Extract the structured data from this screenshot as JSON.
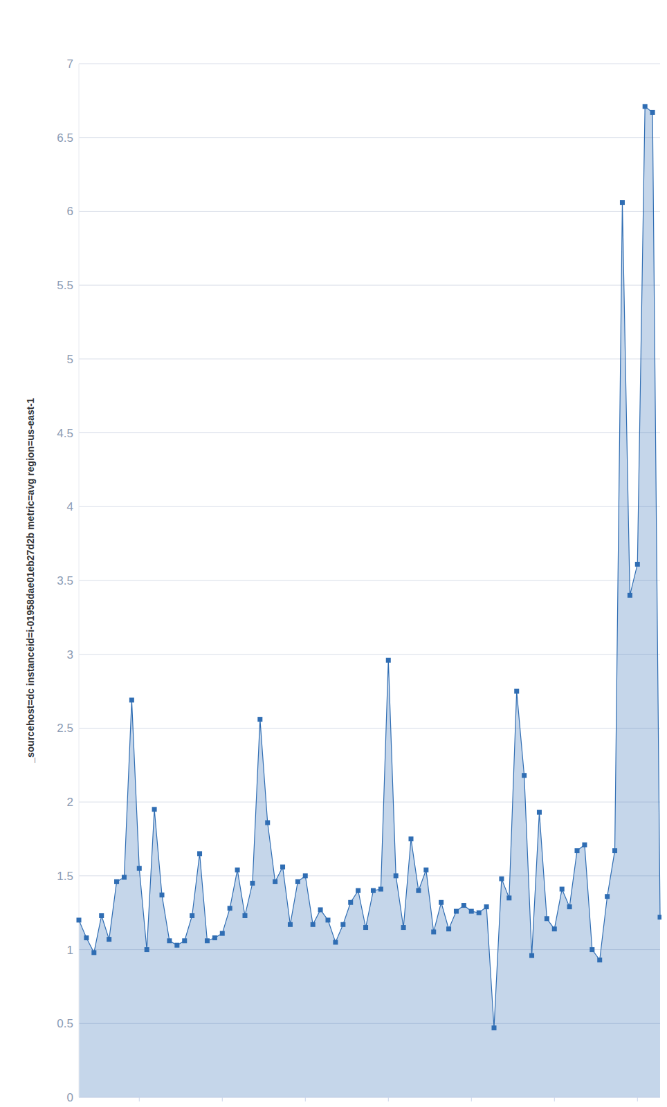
{
  "chart_data": {
    "type": "area",
    "y_label": "_sourcehost=dc instanceid=i-01958dae01eb27d2b metric=avg region=us-east-1",
    "categories": [
      null,
      null,
      null,
      null,
      null,
      null,
      null,
      null,
      null,
      null,
      null,
      null,
      null,
      null,
      null,
      null,
      null,
      null,
      null,
      null,
      null,
      null,
      null,
      null,
      null,
      null,
      null,
      null,
      null,
      null,
      null,
      null,
      null,
      null,
      null,
      null,
      null,
      null,
      null,
      null,
      null,
      null,
      null,
      null,
      null,
      null,
      null,
      null,
      null,
      null,
      null,
      null,
      null,
      null,
      null,
      null,
      null,
      null,
      null,
      null,
      null,
      null,
      null,
      null,
      null,
      null,
      null,
      null,
      null,
      null,
      null,
      null,
      null,
      null,
      null,
      null,
      null,
      null
    ],
    "values": [
      1.2,
      1.08,
      0.98,
      1.23,
      1.07,
      1.46,
      1.49,
      2.69,
      1.55,
      1.0,
      1.95,
      1.37,
      1.06,
      1.03,
      1.06,
      1.23,
      1.65,
      1.06,
      1.08,
      1.11,
      1.28,
      1.54,
      1.23,
      1.45,
      2.56,
      1.86,
      1.46,
      1.56,
      1.17,
      1.46,
      1.5,
      1.17,
      1.27,
      1.2,
      1.05,
      1.17,
      1.32,
      1.4,
      1.15,
      1.4,
      1.41,
      2.96,
      1.5,
      1.15,
      1.75,
      1.4,
      1.54,
      1.12,
      1.32,
      1.14,
      1.26,
      1.3,
      1.26,
      1.25,
      1.29,
      0.47,
      1.48,
      1.35,
      2.75,
      2.18,
      0.96,
      1.93,
      1.21,
      1.14,
      1.41,
      1.29,
      1.67,
      1.71,
      1.0,
      0.93,
      1.36,
      1.67,
      6.06,
      3.4,
      3.61,
      6.71,
      6.67,
      1.22
    ],
    "color": "#2f6db3",
    "ylim": [
      0,
      7
    ],
    "yticks": [
      0,
      0.5,
      1,
      1.5,
      2,
      2.5,
      3,
      3.5,
      4,
      4.5,
      5,
      5.5,
      6,
      6.5,
      7
    ],
    "grid": true,
    "marker": "square",
    "tick_labels": "y"
  }
}
